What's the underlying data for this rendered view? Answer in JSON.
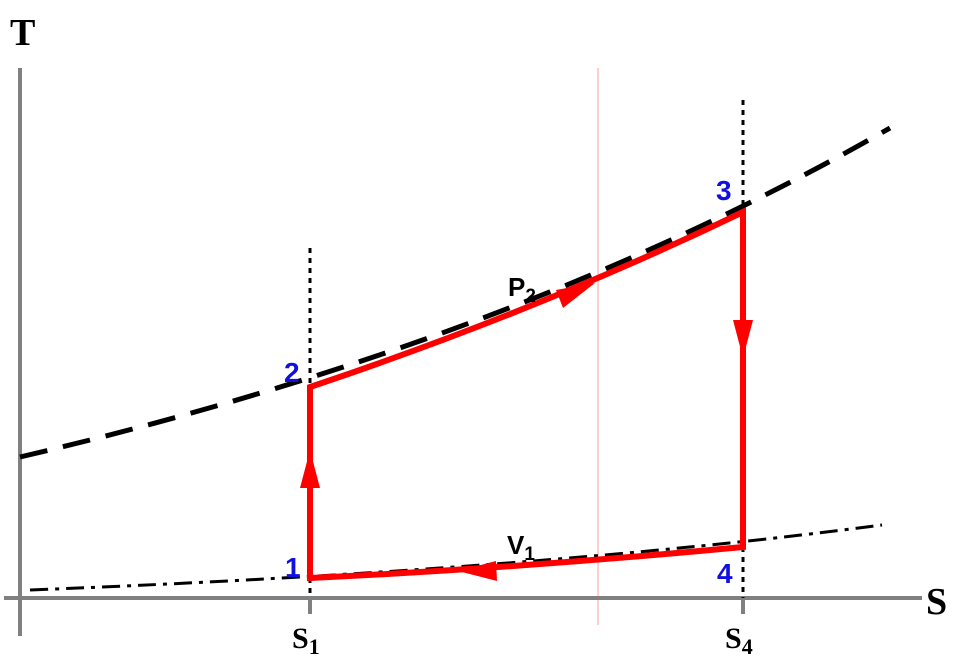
{
  "axes": {
    "y_label": "T",
    "x_label": "S"
  },
  "ticks": [
    {
      "main": "S",
      "sub": "1"
    },
    {
      "main": "S",
      "sub": "4"
    }
  ],
  "points": [
    "1",
    "2",
    "3",
    "4"
  ],
  "processes": [
    {
      "main": "P",
      "sub": "2"
    },
    {
      "main": "V",
      "sub": "1"
    }
  ]
}
